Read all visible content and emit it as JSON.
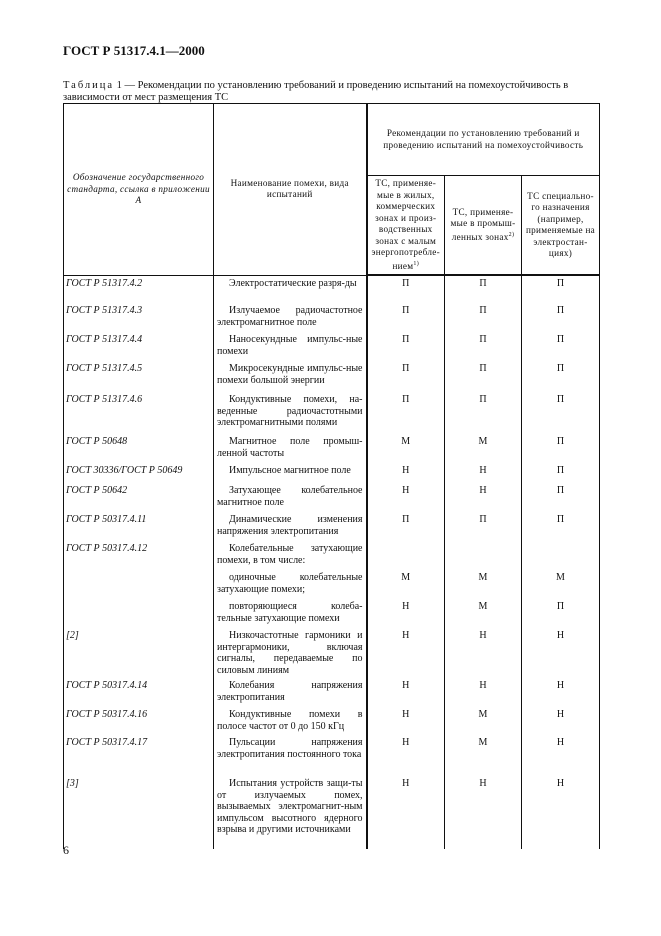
{
  "doc_title": "ГОСТ Р 51317.4.1—2000",
  "caption": {
    "label": "Таблица",
    "text": " 1 — Рекомендации по установлению требований и проведению испытаний на помехоустойчивость в зависимости от мест размещения ТС"
  },
  "headers": {
    "col1": "Обозначение государственного стандарта, ссылка в приложении А",
    "col2": "Наименование помехи, вида испытаний",
    "group": "Рекомендации по установлению требований и проведению испытаний на помехоустойчивость",
    "col3": "ТС, применяе-мые в жилых, коммерческих зонах и произ-водственных зонах с малым энергопотребле-нием",
    "col3_note": "1)",
    "col4": "ТС, применяе-мые в промыш-ленных зонах",
    "col4_note": "2)",
    "col5": "ТС специально-го назначения (например, применяемые на электростан-циях)"
  },
  "rows": [
    {
      "std": "ГОСТ Р 51317.4.2",
      "name": "Электростатические разря-ды",
      "a": "П",
      "b": "П",
      "c": "П"
    },
    {
      "std": "ГОСТ Р 51317.4.3",
      "name": "Излучаемое радиочастотное электромагнитное поле",
      "a": "П",
      "b": "П",
      "c": "П"
    },
    {
      "std": "ГОСТ Р 51317.4.4",
      "name": "Наносекундные импульс-ные помехи",
      "a": "П",
      "b": "П",
      "c": "П"
    },
    {
      "std": "ГОСТ Р 51317.4.5",
      "name": "Микросекундные импульс-ные помехи большой энергии",
      "a": "П",
      "b": "П",
      "c": "П"
    },
    {
      "std": "ГОСТ Р 51317.4.6",
      "name": "Кондуктивные помехи, на-веденные радиочастотными электромагнитными полями",
      "a": "П",
      "b": "П",
      "c": "П"
    },
    {
      "std": "ГОСТ Р 50648",
      "name": "Магнитное поле промыш-ленной частоты",
      "a": "М",
      "b": "М",
      "c": "П"
    },
    {
      "std": "ГОСТ 30336/ГОСТ Р 50649",
      "name": "Импульсное магнитное поле",
      "a": "Н",
      "b": "Н",
      "c": "П"
    },
    {
      "std": "ГОСТ Р 50642",
      "name": "Затухающее колебательное магнитное поле",
      "a": "Н",
      "b": "Н",
      "c": "П"
    },
    {
      "std": "ГОСТ Р 50317.4.11",
      "name": "Динамические изменения напряжения электропитания",
      "a": "П",
      "b": "П",
      "c": "П"
    },
    {
      "std": "ГОСТ Р 50317.4.12",
      "name": "Колебательные затухающие помехи, в том числе:",
      "a": "",
      "b": "",
      "c": ""
    },
    {
      "std": "",
      "name": "одиночные колебательные затухающие помехи;",
      "a": "М",
      "b": "М",
      "c": "М"
    },
    {
      "std": "",
      "name": "повторяющиеся колеба-тельные затухающие помехи",
      "a": "Н",
      "b": "М",
      "c": "П"
    },
    {
      "std": "[2]",
      "name": "Низкочастотные гармоники и интергармоники, включая сигналы, передаваемые по силовым линиям",
      "a": "Н",
      "b": "Н",
      "c": "Н"
    },
    {
      "std": "ГОСТ Р 50317.4.14",
      "name": "Колебания напряжения электропитания",
      "a": "Н",
      "b": "Н",
      "c": "Н"
    },
    {
      "std": "ГОСТ Р 50317.4.16",
      "name": "Кондуктивные помехи в полосе частот от 0 до 150 кГц",
      "a": "Н",
      "b": "М",
      "c": "Н"
    },
    {
      "std": "ГОСТ Р 50317.4.17",
      "name": "Пульсации напряжения электропитания постоянного тока",
      "a": "Н",
      "b": "М",
      "c": "Н"
    },
    {
      "std": "[3]",
      "name": "Испытания устройств защи-ты от излучаемых помех, вызываемых электромагнит-ным импульсом высотного ядерного взрыва и другими источниками",
      "a": "Н",
      "b": "Н",
      "c": "Н"
    }
  ],
  "page_number": "6"
}
